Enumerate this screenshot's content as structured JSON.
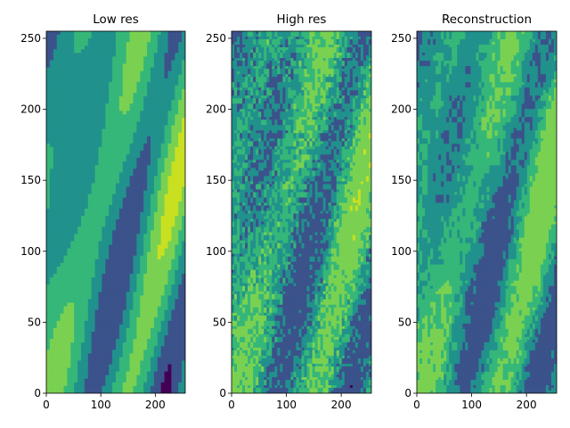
{
  "chart_data": [
    {
      "type": "heatmap",
      "title": "Low res",
      "xlim": [
        0,
        255
      ],
      "ylim": [
        0,
        255
      ],
      "xticks": [
        0,
        100,
        200
      ],
      "yticks": [
        0,
        50,
        100,
        150,
        200,
        250
      ],
      "style": "smooth",
      "palette": [
        "#440154",
        "#3b528b",
        "#21918c",
        "#35b779",
        "#7ad151",
        "#c8e020"
      ],
      "grid": false
    },
    {
      "type": "heatmap",
      "title": "High res",
      "xlim": [
        0,
        255
      ],
      "ylim": [
        0,
        255
      ],
      "xticks": [
        0,
        100,
        200
      ],
      "yticks": [
        0,
        50,
        100,
        150,
        200,
        250
      ],
      "style": "noisy",
      "palette": [
        "#440154",
        "#3b528b",
        "#21918c",
        "#35b779",
        "#7ad151",
        "#c8e020"
      ],
      "grid": false
    },
    {
      "type": "heatmap",
      "title": "Reconstruction",
      "xlim": [
        0,
        255
      ],
      "ylim": [
        0,
        255
      ],
      "xticks": [
        0,
        100,
        200
      ],
      "yticks": [
        0,
        50,
        100,
        150,
        200,
        250
      ],
      "style": "blocky",
      "palette": [
        "#440154",
        "#3b528b",
        "#21918c",
        "#35b779",
        "#7ad151",
        "#c8e020"
      ],
      "grid": false
    }
  ]
}
